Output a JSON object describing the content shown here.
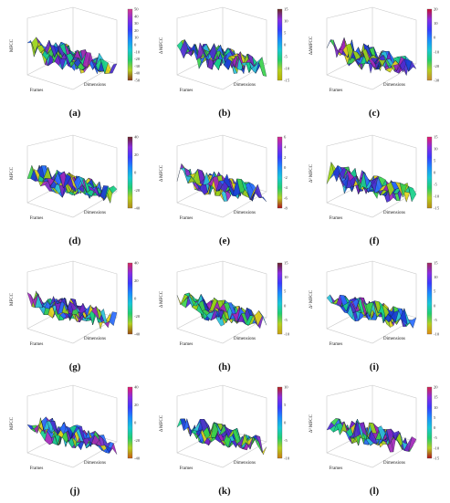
{
  "panels": [
    {
      "label": "(a)",
      "zlabel": "MFCC",
      "xlabel": "Frames",
      "ylabel": "Dimensions",
      "cbar": [
        "50",
        "40",
        "30",
        "20",
        "10",
        "0",
        "-10",
        "-20",
        "-30",
        "-40",
        "-50"
      ],
      "top": "#d63a8a",
      "bottom": "#8a3a1a"
    },
    {
      "label": "(b)",
      "zlabel": "Δ MFCC",
      "xlabel": "Frames",
      "ylabel": "Dimensions",
      "cbar": [
        "15",
        "10",
        "5",
        "0",
        "-5",
        "-10",
        "-15"
      ],
      "top": "#6a2d1d",
      "bottom": "#b8b000"
    },
    {
      "label": "(c)",
      "zlabel": "ΔΔMFCC",
      "xlabel": "Frames",
      "ylabel": "Dimensions",
      "cbar": [
        "20",
        "10",
        "0",
        "-10",
        "-20",
        "-30"
      ],
      "top": "#c8102e",
      "bottom": "#c88a2e"
    },
    {
      "label": "(d)",
      "zlabel": "MFCC",
      "xlabel": "Frames",
      "ylabel": "Dimensions",
      "cbar": [
        "40",
        "20",
        "0",
        "-20",
        "-40"
      ],
      "top": "#6b2222",
      "bottom": "#b28a1a"
    },
    {
      "label": "(e)",
      "zlabel": "Δ MFCC",
      "xlabel": "Frames",
      "ylabel": "Dimensions",
      "cbar": [
        "6",
        "4",
        "2",
        "0",
        "-2",
        "-4",
        "-6",
        "-8"
      ],
      "top": "#d62a8a",
      "bottom": "#b0101a"
    },
    {
      "label": "(f)",
      "zlabel": "Δ² MFCC",
      "xlabel": "Frames",
      "ylabel": "Dimensions",
      "cbar": [
        "15",
        "10",
        "5",
        "0",
        "-5",
        "-10",
        "-15"
      ],
      "top": "#e61a6a",
      "bottom": "#b88a10"
    },
    {
      "label": "(g)",
      "zlabel": "MFCC",
      "xlabel": "Frames",
      "ylabel": "Dimensions",
      "cbar": [
        "40",
        "20",
        "0",
        "-20",
        "-40"
      ],
      "top": "#d62a5a",
      "bottom": "#9a4a10"
    },
    {
      "label": "(h)",
      "zlabel": "Δ MFCC",
      "xlabel": "Frames",
      "ylabel": "Dimensions",
      "cbar": [
        "15",
        "10",
        "5",
        "0",
        "-5",
        "-10"
      ],
      "top": "#6a2424",
      "bottom": "#caa010"
    },
    {
      "label": "(i)",
      "zlabel": "Δ² MFCC",
      "xlabel": "Frames",
      "ylabel": "Dimensions",
      "cbar": [
        "15",
        "10",
        "5",
        "0",
        "-5",
        "-10"
      ],
      "top": "#a22a5a",
      "bottom": "#e08a10"
    },
    {
      "label": "(j)",
      "zlabel": "MFCC",
      "xlabel": "Frames",
      "ylabel": "Dimensions",
      "cbar": [
        "40",
        "20",
        "0",
        "-20",
        "-40"
      ],
      "top": "#e61a6a",
      "bottom": "#c85a10"
    },
    {
      "label": "(k)",
      "zlabel": "Δ MFCC",
      "xlabel": "Frames",
      "ylabel": "Dimensions",
      "cbar": [
        "10",
        "5",
        "0",
        "-5",
        "-10"
      ],
      "top": "#b8241a",
      "bottom": "#c87a10"
    },
    {
      "label": "(l)",
      "zlabel": "Δ² MFCC",
      "xlabel": "Frames",
      "ylabel": "Dimensions",
      "cbar": [
        "20",
        "15",
        "10",
        "5",
        "0",
        "-5",
        "-10",
        "-15"
      ],
      "top": "#d6244a",
      "bottom": "#b2101a"
    }
  ]
}
